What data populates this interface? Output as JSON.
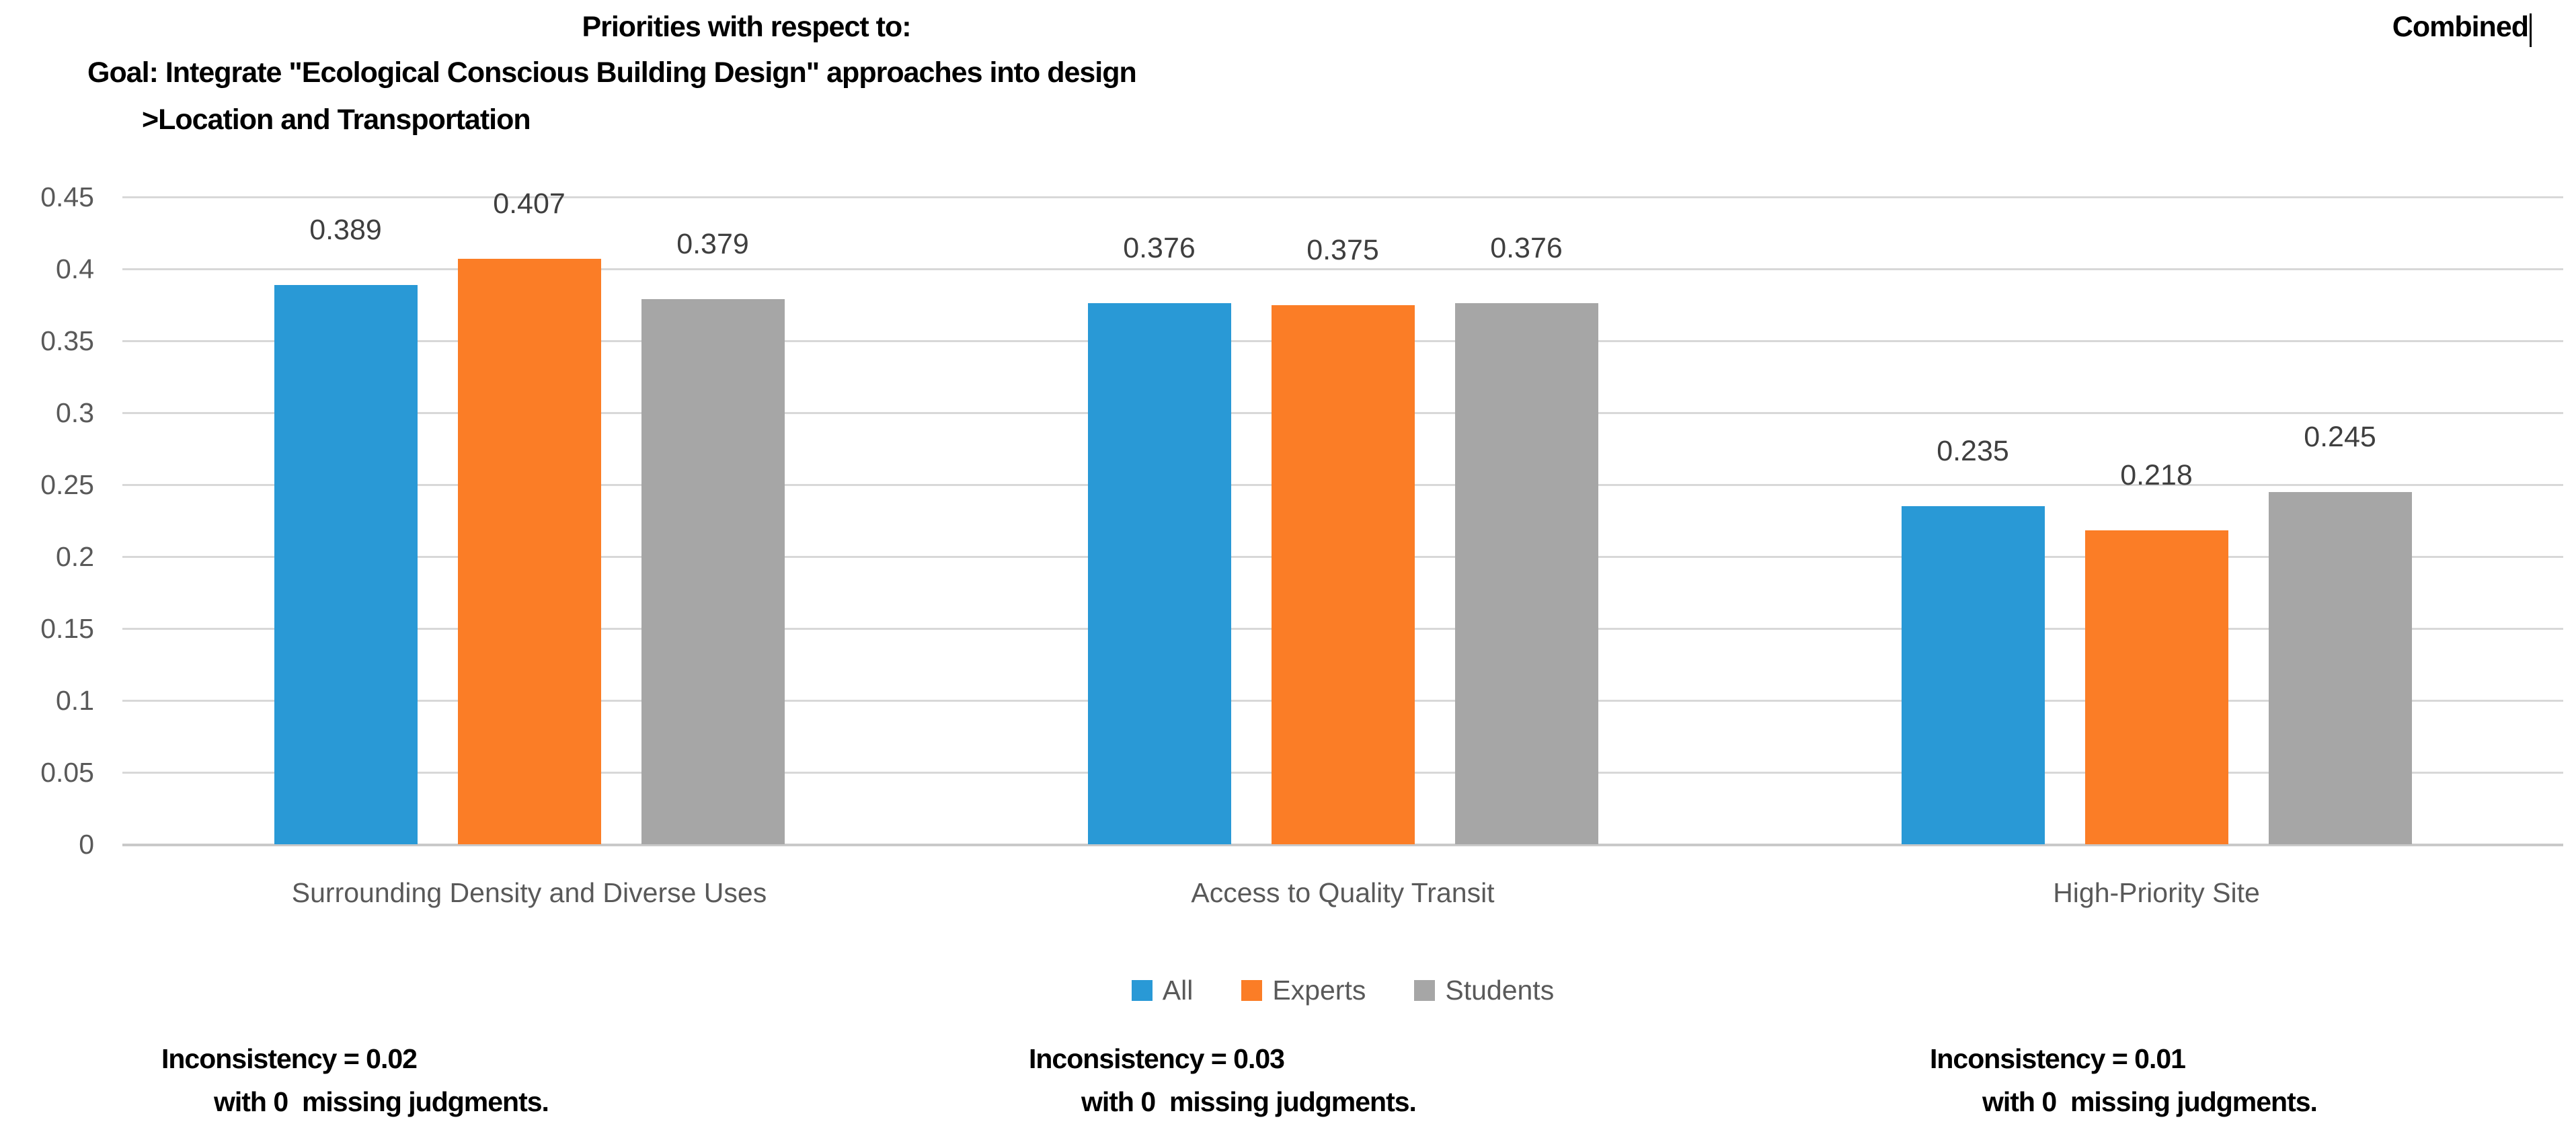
{
  "header": {
    "line1": "Priorities with respect to:",
    "line2": "Goal: Integrate \"Ecological Conscious Building Design\" approaches into design",
    "line3": ">Location and Transportation",
    "corner_label": "Combined"
  },
  "chart_data": {
    "type": "bar",
    "title": "Priorities with respect to: Goal: Integrate \"Ecological Conscious Building Design\" approaches into design >Location and Transportation",
    "corner_label": "Combined",
    "categories": [
      "Surrounding Density and Diverse Uses",
      "Access to Quality Transit",
      "High-Priority Site"
    ],
    "series": [
      {
        "name": "All",
        "color": "#2999D6",
        "values": [
          0.389,
          0.376,
          0.235
        ],
        "labels": [
          "0.389",
          "0.376",
          "0.235"
        ]
      },
      {
        "name": "Experts",
        "color": "#FB7D26",
        "values": [
          0.407,
          0.375,
          0.218
        ],
        "labels": [
          "0.407",
          "0.375",
          "0.218"
        ]
      },
      {
        "name": "Students",
        "color": "#A6A6A6",
        "values": [
          0.379,
          0.376,
          0.245
        ],
        "labels": [
          "0.379",
          "0.376",
          "0.245"
        ]
      }
    ],
    "xlabel": "",
    "ylabel": "",
    "ylim": [
      0,
      0.45
    ],
    "yticks": [
      {
        "value": 0.45,
        "label": "0.45"
      },
      {
        "value": 0.4,
        "label": "0.4"
      },
      {
        "value": 0.35,
        "label": "0.35"
      },
      {
        "value": 0.3,
        "label": "0.3"
      },
      {
        "value": 0.25,
        "label": "0.25"
      },
      {
        "value": 0.2,
        "label": "0.2"
      },
      {
        "value": 0.15,
        "label": "0.15"
      },
      {
        "value": 0.1,
        "label": "0.1"
      },
      {
        "value": 0.05,
        "label": "0.05"
      },
      {
        "value": 0,
        "label": "0"
      }
    ],
    "grid": true,
    "legend_position": "bottom"
  },
  "notes": [
    {
      "line1": "Inconsistency = 0.02",
      "line2": "with 0  missing judgments."
    },
    {
      "line1": "Inconsistency = 0.03",
      "line2": "with 0  missing judgments."
    },
    {
      "line1": "Inconsistency = 0.01",
      "line2": "with 0  missing judgments."
    }
  ],
  "colors": {
    "grid": "#D8D8D8",
    "axis_text": "#595959",
    "data_label": "#3F3F3F",
    "note_text": "#000000",
    "background": "#FFFFFF"
  }
}
